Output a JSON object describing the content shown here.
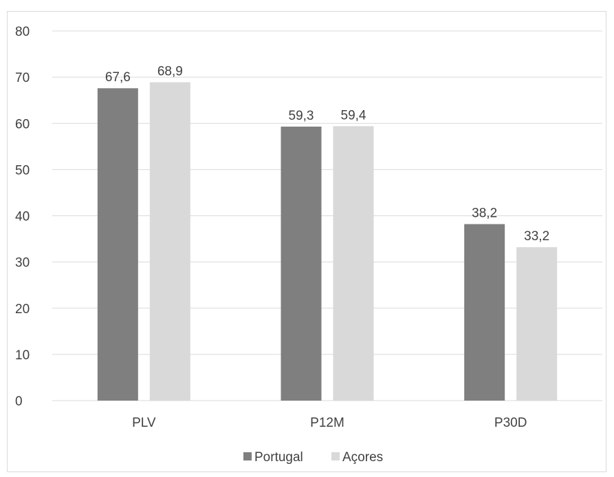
{
  "chart_data": {
    "type": "bar",
    "categories": [
      "PLV",
      "P12M",
      "P30D"
    ],
    "series": [
      {
        "name": "Portugal",
        "values": [
          67.6,
          59.3,
          38.2
        ],
        "labels": [
          "67,6",
          "59,3",
          "38,2"
        ],
        "color": "#7f7f7f"
      },
      {
        "name": "Açores",
        "values": [
          68.9,
          59.4,
          33.2
        ],
        "labels": [
          "68,9",
          "59,4",
          "33,2"
        ],
        "color": "#d9d9d9"
      }
    ],
    "ylim": [
      0,
      80
    ],
    "yticks": [
      0,
      10,
      20,
      30,
      40,
      50,
      60,
      70,
      80
    ],
    "grid": true,
    "legend": "bottom",
    "title": "",
    "xlabel": "",
    "ylabel": ""
  }
}
